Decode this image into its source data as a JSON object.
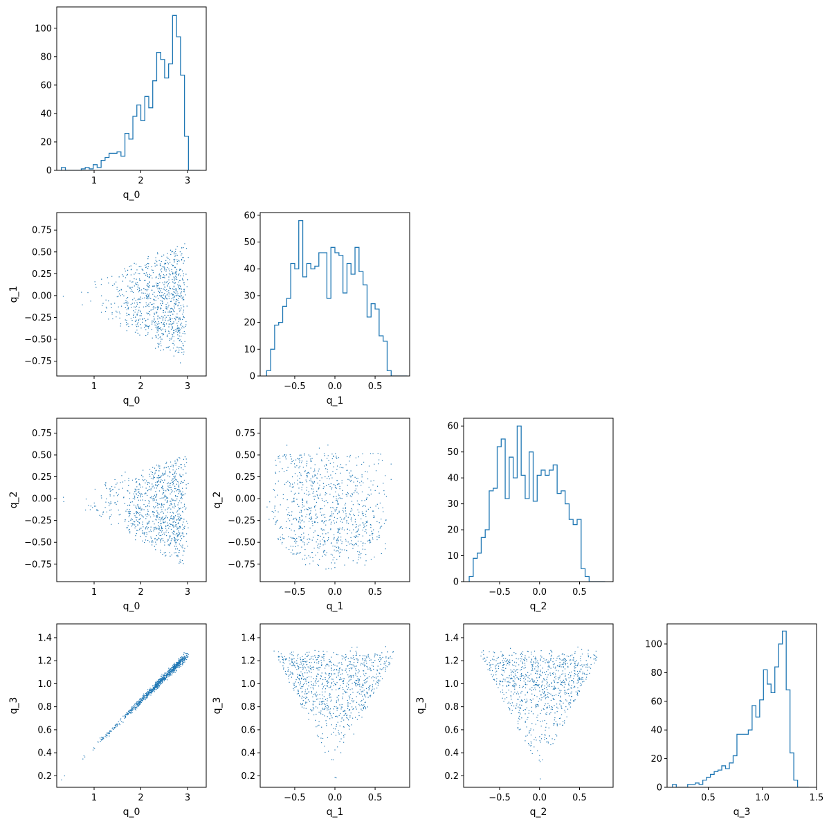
{
  "colors": {
    "series": "#1f77b4",
    "axes": "#000000",
    "background": "#ffffff"
  },
  "chart_data": [
    {
      "type": "histogram",
      "row": 0,
      "col": 0,
      "xlabel": "q_0",
      "ylabel": "",
      "xlim": [
        0.2,
        3.4
      ],
      "ylim": [
        0,
        115
      ],
      "xticks": [
        1,
        2,
        3
      ],
      "yticks": [
        0,
        20,
        40,
        60,
        80,
        100
      ],
      "bin_edges": [
        0.3,
        0.385,
        0.47,
        0.555,
        0.64,
        0.725,
        0.81,
        0.895,
        0.98,
        1.065,
        1.15,
        1.235,
        1.32,
        1.405,
        1.49,
        1.575,
        1.66,
        1.745,
        1.83,
        1.915,
        2.0,
        2.085,
        2.17,
        2.255,
        2.34,
        2.425,
        2.51,
        2.595,
        2.68,
        2.765,
        2.85,
        2.935,
        3.02,
        3.105,
        3.19,
        3.275
      ],
      "counts": [
        2,
        0,
        0,
        0,
        0,
        1,
        2,
        1,
        4,
        2,
        7,
        9,
        12,
        12,
        13,
        10,
        26,
        22,
        38,
        46,
        35,
        52,
        44,
        63,
        83,
        78,
        65,
        75,
        109,
        94,
        67,
        24,
        0,
        0,
        0
      ]
    },
    {
      "type": "scatter",
      "row": 1,
      "col": 0,
      "xlabel": "q_0",
      "ylabel": "q_1",
      "xlim": [
        0.2,
        3.4
      ],
      "ylim": [
        -0.92,
        0.95
      ],
      "xticks": [
        1,
        2,
        3
      ],
      "yticks": [
        -0.75,
        -0.5,
        -0.25,
        0.0,
        0.25,
        0.5,
        0.75
      ],
      "ytick_labels": [
        "−0.75",
        "−0.50",
        "−0.25",
        "0.00",
        "0.25",
        "0.50",
        "0.75"
      ],
      "point_count": 900,
      "pattern": "wedge"
    },
    {
      "type": "histogram",
      "row": 1,
      "col": 1,
      "xlabel": "q_1",
      "ylabel": "",
      "xlim": [
        -0.93,
        0.93
      ],
      "ylim": [
        0,
        61
      ],
      "xticks": [
        -0.5,
        0.0,
        0.5
      ],
      "xtick_labels": [
        "−0.5",
        "0.0",
        "0.5"
      ],
      "yticks": [
        0,
        10,
        20,
        30,
        40,
        50,
        60
      ],
      "bin_edges": [
        -0.85,
        -0.8,
        -0.75,
        -0.7,
        -0.65,
        -0.6,
        -0.55,
        -0.5,
        -0.45,
        -0.4,
        -0.35,
        -0.3,
        -0.25,
        -0.2,
        -0.15,
        -0.1,
        -0.05,
        0.0,
        0.05,
        0.1,
        0.15,
        0.2,
        0.25,
        0.3,
        0.35,
        0.4,
        0.45,
        0.5,
        0.55,
        0.6,
        0.65,
        0.7,
        0.75,
        0.8,
        0.85,
        0.9
      ],
      "counts": [
        2,
        10,
        19,
        20,
        26,
        29,
        42,
        40,
        58,
        37,
        42,
        40,
        41,
        46,
        46,
        29,
        48,
        46,
        45,
        31,
        42,
        38,
        48,
        39,
        34,
        22,
        27,
        25,
        15,
        13,
        2,
        0,
        0,
        0,
        0
      ]
    },
    {
      "type": "scatter",
      "row": 2,
      "col": 0,
      "xlabel": "q_0",
      "ylabel": "q_2",
      "xlim": [
        0.2,
        3.4
      ],
      "ylim": [
        -0.95,
        0.92
      ],
      "xticks": [
        1,
        2,
        3
      ],
      "yticks": [
        -0.75,
        -0.5,
        -0.25,
        0.0,
        0.25,
        0.5,
        0.75
      ],
      "ytick_labels": [
        "−0.75",
        "−0.50",
        "−0.25",
        "0.00",
        "0.25",
        "0.50",
        "0.75"
      ],
      "point_count": 900,
      "pattern": "wedge"
    },
    {
      "type": "scatter",
      "row": 2,
      "col": 1,
      "xlabel": "q_1",
      "ylabel": "q_2",
      "xlim": [
        -0.93,
        0.93
      ],
      "ylim": [
        -0.95,
        0.92
      ],
      "xticks": [
        -0.5,
        0.0,
        0.5
      ],
      "xtick_labels": [
        "−0.5",
        "0.0",
        "0.5"
      ],
      "yticks": [
        -0.75,
        -0.5,
        -0.25,
        0.0,
        0.25,
        0.5,
        0.75
      ],
      "ytick_labels": [
        "−0.75",
        "−0.50",
        "−0.25",
        "0.00",
        "0.25",
        "0.50",
        "0.75"
      ],
      "point_count": 900,
      "pattern": "disk"
    },
    {
      "type": "histogram",
      "row": 2,
      "col": 2,
      "xlabel": "q_2",
      "ylabel": "",
      "xlim": [
        -0.95,
        0.92
      ],
      "ylim": [
        0,
        63
      ],
      "xticks": [
        -0.5,
        0.0,
        0.5
      ],
      "xtick_labels": [
        "−0.5",
        "0.0",
        "0.5"
      ],
      "yticks": [
        0,
        10,
        20,
        30,
        40,
        50,
        60
      ],
      "bin_edges": [
        -0.88,
        -0.83,
        -0.78,
        -0.73,
        -0.68,
        -0.63,
        -0.58,
        -0.53,
        -0.48,
        -0.43,
        -0.38,
        -0.33,
        -0.28,
        -0.23,
        -0.18,
        -0.13,
        -0.08,
        -0.03,
        0.02,
        0.07,
        0.12,
        0.17,
        0.22,
        0.27,
        0.32,
        0.37,
        0.42,
        0.47,
        0.52,
        0.57,
        0.62,
        0.67,
        0.72,
        0.77,
        0.82
      ],
      "counts": [
        2,
        9,
        11,
        17,
        20,
        35,
        36,
        52,
        55,
        32,
        48,
        40,
        60,
        41,
        32,
        50,
        31,
        41,
        43,
        41,
        43,
        45,
        34,
        35,
        30,
        24,
        22,
        24,
        5,
        2,
        0,
        0,
        0,
        0
      ]
    },
    {
      "type": "scatter",
      "row": 3,
      "col": 0,
      "xlabel": "q_0",
      "ylabel": "q_3",
      "xlim": [
        0.2,
        3.4
      ],
      "ylim": [
        0.1,
        1.52
      ],
      "xticks": [
        1,
        2,
        3
      ],
      "yticks": [
        0.2,
        0.4,
        0.6,
        0.8,
        1.0,
        1.2,
        1.4
      ],
      "ytick_labels": [
        "0.2",
        "0.4",
        "0.6",
        "0.8",
        "1.0",
        "1.2",
        "1.4"
      ],
      "point_count": 900,
      "pattern": "diagonal"
    },
    {
      "type": "scatter",
      "row": 3,
      "col": 1,
      "xlabel": "q_1",
      "ylabel": "q_3",
      "xlim": [
        -0.93,
        0.93
      ],
      "ylim": [
        0.1,
        1.52
      ],
      "xticks": [
        -0.5,
        0.0,
        0.5
      ],
      "xtick_labels": [
        "−0.5",
        "0.0",
        "0.5"
      ],
      "yticks": [
        0.2,
        0.4,
        0.6,
        0.8,
        1.0,
        1.2,
        1.4
      ],
      "ytick_labels": [
        "0.2",
        "0.4",
        "0.6",
        "0.8",
        "1.0",
        "1.2",
        "1.4"
      ],
      "point_count": 900,
      "pattern": "triangle"
    },
    {
      "type": "scatter",
      "row": 3,
      "col": 2,
      "xlabel": "q_2",
      "ylabel": "q_3",
      "xlim": [
        -0.95,
        0.92
      ],
      "ylim": [
        0.1,
        1.52
      ],
      "xticks": [
        -0.5,
        0.0,
        0.5
      ],
      "xtick_labels": [
        "−0.5",
        "0.0",
        "0.5"
      ],
      "yticks": [
        0.2,
        0.4,
        0.6,
        0.8,
        1.0,
        1.2,
        1.4
      ],
      "ytick_labels": [
        "0.2",
        "0.4",
        "0.6",
        "0.8",
        "1.0",
        "1.2",
        "1.4"
      ],
      "point_count": 900,
      "pattern": "triangle"
    },
    {
      "type": "histogram",
      "row": 3,
      "col": 3,
      "xlabel": "q_3",
      "ylabel": "",
      "xlim": [
        0.12,
        1.5
      ],
      "ylim": [
        0,
        114
      ],
      "xticks": [
        0.5,
        1.0,
        1.5
      ],
      "xtick_labels": [
        "0.5",
        "1.0",
        "1.5"
      ],
      "yticks": [
        0,
        20,
        40,
        60,
        80,
        100
      ],
      "bin_edges": [
        0.17,
        0.205,
        0.24,
        0.275,
        0.31,
        0.345,
        0.38,
        0.415,
        0.45,
        0.485,
        0.52,
        0.555,
        0.59,
        0.625,
        0.66,
        0.695,
        0.73,
        0.765,
        0.8,
        0.835,
        0.87,
        0.905,
        0.94,
        0.975,
        1.01,
        1.045,
        1.08,
        1.115,
        1.15,
        1.185,
        1.22,
        1.255,
        1.29,
        1.325,
        1.36,
        1.395,
        1.43
      ],
      "counts": [
        2,
        0,
        0,
        0,
        2,
        2,
        3,
        2,
        5,
        7,
        9,
        11,
        12,
        15,
        13,
        17,
        22,
        37,
        37,
        37,
        40,
        57,
        49,
        61,
        82,
        72,
        66,
        84,
        100,
        109,
        68,
        24,
        5,
        0,
        0,
        0
      ]
    }
  ]
}
